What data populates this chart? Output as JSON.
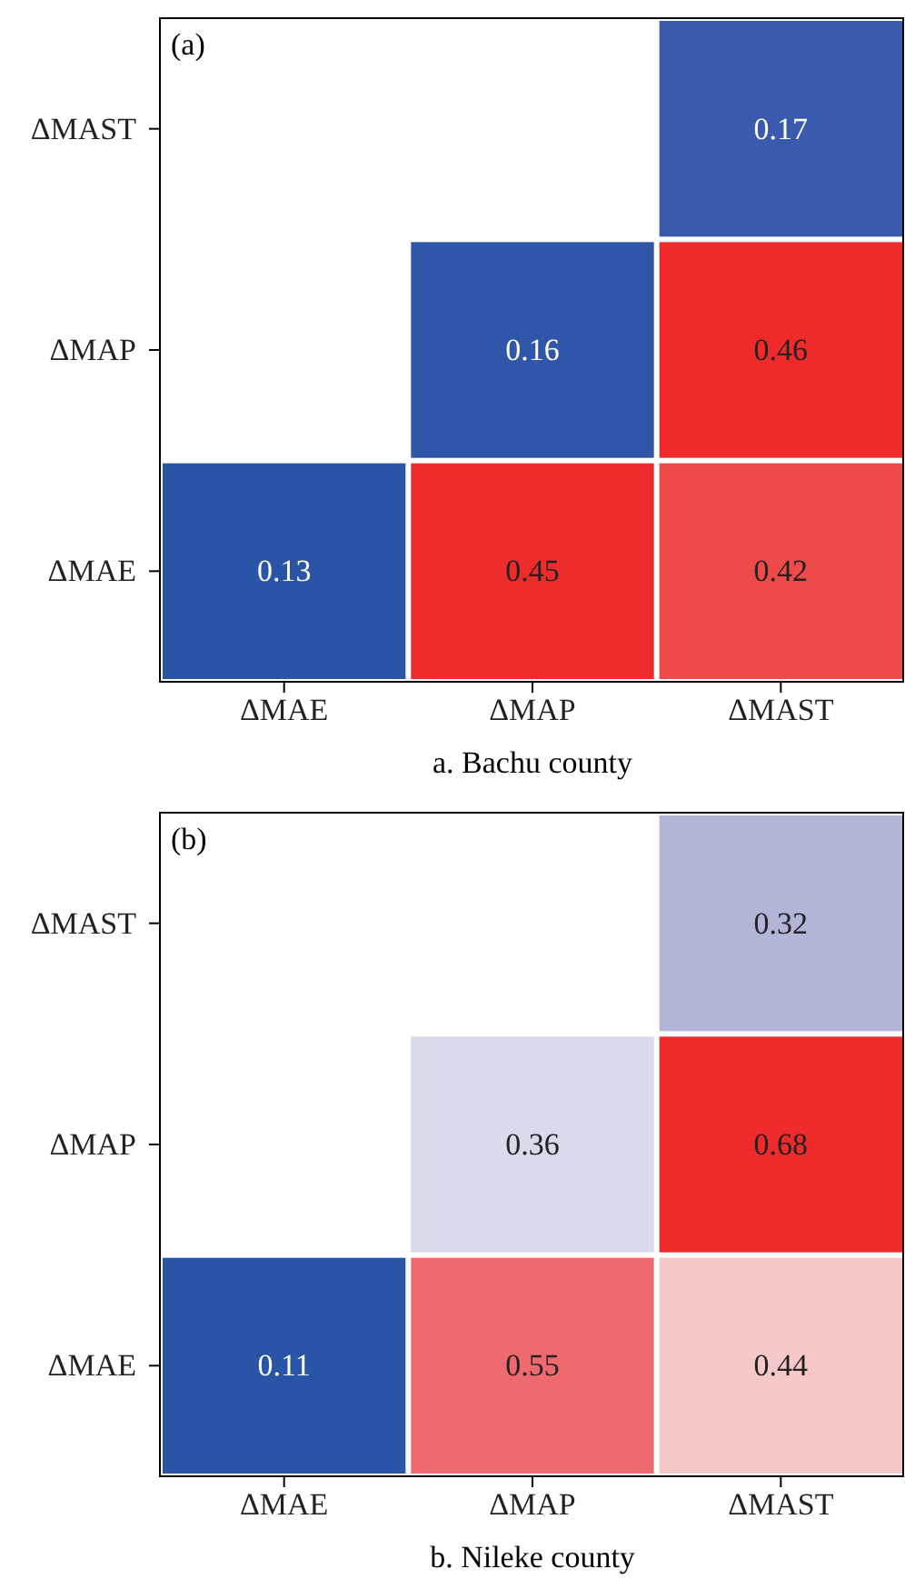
{
  "chart_data": [
    {
      "type": "heatmap",
      "title": "(a)",
      "xlabel": "a. Bachu county",
      "categories": [
        "ΔMAE",
        "ΔMAP",
        "ΔMAST"
      ],
      "y_categories": [
        "ΔMAST",
        "ΔMAP",
        "ΔMAE"
      ],
      "cells": [
        [
          null,
          null,
          0.17
        ],
        [
          null,
          0.16,
          0.46
        ],
        [
          0.13,
          0.45,
          0.42
        ]
      ],
      "colors": [
        [
          null,
          null,
          "#3a5aad"
        ],
        [
          null,
          "#2f56a8",
          "#ee2a2a"
        ],
        [
          "#2a54a5",
          "#ee2c2c",
          "#ee4a4a"
        ]
      ],
      "data_labels": true
    },
    {
      "type": "heatmap",
      "title": "(b)",
      "xlabel": "b. Nileke county",
      "categories": [
        "ΔMAE",
        "ΔMAP",
        "ΔMAST"
      ],
      "y_categories": [
        "ΔMAST",
        "ΔMAP",
        "ΔMAE"
      ],
      "cells": [
        [
          null,
          null,
          0.32
        ],
        [
          null,
          0.36,
          0.68
        ],
        [
          0.11,
          0.55,
          0.44
        ]
      ],
      "colors": [
        [
          null,
          null,
          "#b2b4d8"
        ],
        [
          null,
          "#d9daec",
          "#ee2a2a"
        ],
        [
          "#2a54a5",
          "#ee6a6e",
          "#f6c8c8"
        ]
      ],
      "data_labels": true
    }
  ]
}
